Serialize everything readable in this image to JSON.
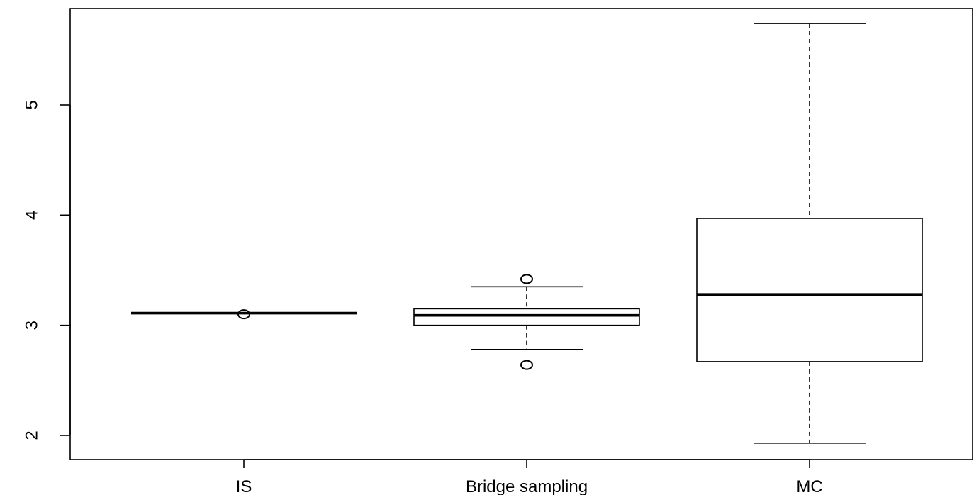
{
  "chart_data": {
    "type": "box",
    "title": "",
    "xlabel": "",
    "ylabel": "",
    "ylim": [
      1.9,
      6.0
    ],
    "yticks": [
      "2",
      "3",
      "4",
      "5"
    ],
    "grid": false,
    "legend": "none",
    "boxes": [
      {
        "label": "IS",
        "whisker_low": 3.11,
        "q1": 3.11,
        "median": 3.11,
        "q3": 3.11,
        "whisker_high": 3.11,
        "outliers": [
          3.1
        ]
      },
      {
        "label": "Bridge sampling",
        "whisker_low": 2.78,
        "q1": 3.0,
        "median": 3.09,
        "q3": 3.15,
        "whisker_high": 3.35,
        "outliers": [
          3.42,
          2.64
        ]
      },
      {
        "label": "MC",
        "whisker_low": 1.93,
        "q1": 2.67,
        "median": 3.28,
        "q3": 3.97,
        "whisker_high": 5.74,
        "outliers": []
      }
    ],
    "colors": {
      "stroke": "#000000",
      "fill": "#ffffff"
    }
  }
}
